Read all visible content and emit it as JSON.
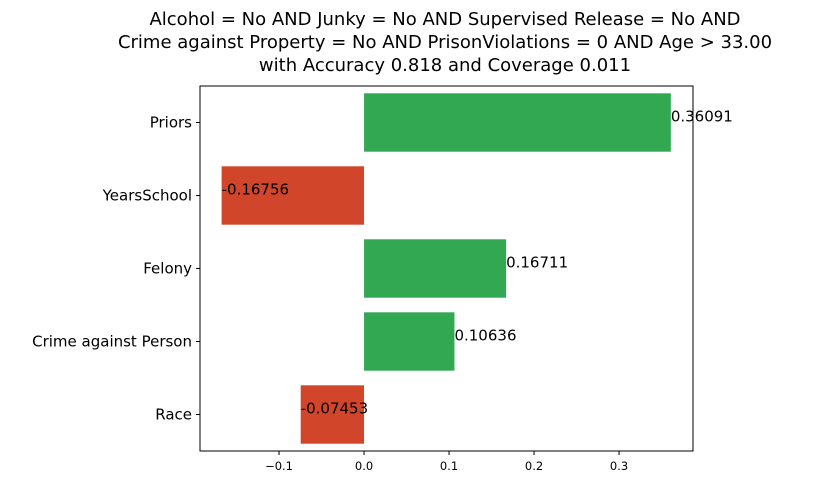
{
  "chart_data": {
    "type": "bar",
    "orientation": "horizontal",
    "title_lines": [
      "Alcohol = No AND Junky = No AND Supervised Release = No AND",
      "Crime against Property = No AND PrisonViolations = 0 AND Age > 33.00",
      "with Accuracy 0.818 and Coverage 0.011"
    ],
    "categories": [
      "Priors",
      "YearsSchool",
      "Felony",
      "Crime against Person",
      "Race"
    ],
    "values": [
      0.36091,
      -0.16756,
      0.16711,
      0.10636,
      -0.07453
    ],
    "value_labels": [
      "0.36091",
      "-0.16756",
      "0.16711",
      "0.10636",
      "-0.07453"
    ],
    "xticks": [
      -0.1,
      0.0,
      0.1,
      0.2,
      0.3
    ],
    "xtick_labels": [
      "−0.1",
      "0.0",
      "0.1",
      "0.2",
      "0.3"
    ],
    "xlim": [
      -0.193,
      0.387
    ],
    "positive_color": "#33a852",
    "negative_color": "#d1462b",
    "grid": false,
    "legend": "none"
  }
}
